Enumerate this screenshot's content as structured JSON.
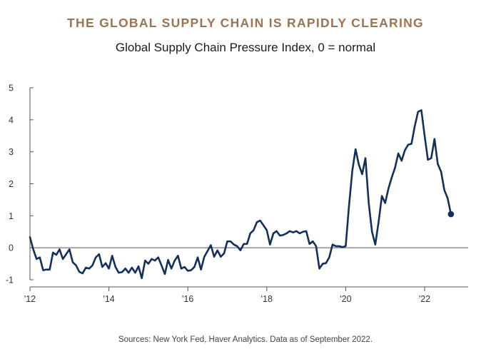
{
  "header": {
    "title": "THE GLOBAL SUPPLY CHAIN IS RAPIDLY CLEARING",
    "subtitle": "Global Supply Chain Pressure Index, 0 = normal"
  },
  "footer": {
    "source": "Sources: New York Fed, Haver Analytics. Data as of September 2022."
  },
  "colors": {
    "title": "#9a7453",
    "line": "#12305b",
    "axis": "#555555"
  },
  "chart_data": {
    "type": "line",
    "title": "Global Supply Chain Pressure Index, 0 = normal",
    "xlabel": "",
    "ylabel": "",
    "xlim": [
      2012.0,
      2022.85
    ],
    "ylim": [
      -1,
      5
    ],
    "yticks": [
      -1,
      0,
      1,
      2,
      3,
      4,
      5
    ],
    "ytick_labels": [
      "-1",
      "0",
      "1",
      "2",
      "3",
      "4",
      "5"
    ],
    "xticks": [
      2012,
      2014,
      2016,
      2018,
      2020,
      2022
    ],
    "xtick_labels": [
      "'12",
      "'14",
      "'16",
      "'18",
      "'20",
      "'22"
    ],
    "grid": false,
    "series": [
      {
        "name": "Global Supply Chain Pressure Index",
        "end_marker": true,
        "x": [
          2012.0,
          2012.083,
          2012.167,
          2012.25,
          2012.333,
          2012.417,
          2012.5,
          2012.583,
          2012.667,
          2012.75,
          2012.833,
          2012.917,
          2013.0,
          2013.083,
          2013.167,
          2013.25,
          2013.333,
          2013.417,
          2013.5,
          2013.583,
          2013.667,
          2013.75,
          2013.833,
          2013.917,
          2014.0,
          2014.083,
          2014.167,
          2014.25,
          2014.333,
          2014.417,
          2014.5,
          2014.583,
          2014.667,
          2014.75,
          2014.833,
          2014.917,
          2015.0,
          2015.083,
          2015.167,
          2015.25,
          2015.333,
          2015.417,
          2015.5,
          2015.583,
          2015.667,
          2015.75,
          2015.833,
          2015.917,
          2016.0,
          2016.083,
          2016.167,
          2016.25,
          2016.333,
          2016.417,
          2016.5,
          2016.583,
          2016.667,
          2016.75,
          2016.833,
          2016.917,
          2017.0,
          2017.083,
          2017.167,
          2017.25,
          2017.333,
          2017.417,
          2017.5,
          2017.583,
          2017.667,
          2017.75,
          2017.833,
          2017.917,
          2018.0,
          2018.083,
          2018.167,
          2018.25,
          2018.333,
          2018.417,
          2018.5,
          2018.583,
          2018.667,
          2018.75,
          2018.833,
          2018.917,
          2019.0,
          2019.083,
          2019.167,
          2019.25,
          2019.333,
          2019.417,
          2019.5,
          2019.583,
          2019.667,
          2019.75,
          2019.833,
          2019.917,
          2020.0,
          2020.083,
          2020.167,
          2020.25,
          2020.333,
          2020.417,
          2020.5,
          2020.583,
          2020.667,
          2020.75,
          2020.833,
          2020.917,
          2021.0,
          2021.083,
          2021.167,
          2021.25,
          2021.333,
          2021.417,
          2021.5,
          2021.583,
          2021.667,
          2021.75,
          2021.833,
          2021.917,
          2022.0,
          2022.083,
          2022.167,
          2022.25,
          2022.333,
          2022.417,
          2022.5,
          2022.583,
          2022.667
        ],
        "values": [
          0.33,
          -0.05,
          -0.35,
          -0.3,
          -0.7,
          -0.68,
          -0.68,
          -0.15,
          -0.22,
          -0.05,
          -0.35,
          -0.2,
          -0.05,
          -0.45,
          -0.55,
          -0.75,
          -0.8,
          -0.62,
          -0.65,
          -0.55,
          -0.3,
          -0.2,
          -0.6,
          -0.48,
          -0.65,
          -0.25,
          -0.6,
          -0.78,
          -0.76,
          -0.65,
          -0.78,
          -0.62,
          -0.78,
          -0.58,
          -0.95,
          -0.4,
          -0.5,
          -0.35,
          -0.4,
          -0.3,
          -0.55,
          -0.82,
          -0.38,
          -0.65,
          -0.4,
          -0.25,
          -0.65,
          -0.6,
          -0.72,
          -0.7,
          -0.6,
          -0.3,
          -0.68,
          -0.28,
          -0.1,
          0.08,
          -0.28,
          -0.08,
          -0.28,
          -0.18,
          0.2,
          0.2,
          0.1,
          0.05,
          -0.08,
          0.12,
          0.12,
          0.45,
          0.55,
          0.8,
          0.85,
          0.7,
          0.55,
          0.1,
          0.45,
          0.52,
          0.38,
          0.4,
          0.45,
          0.52,
          0.48,
          0.52,
          0.45,
          0.5,
          0.52,
          0.12,
          0.2,
          0.05,
          -0.65,
          -0.5,
          -0.48,
          -0.3,
          0.1,
          0.05,
          0.05,
          0.02,
          0.05,
          1.3,
          2.4,
          3.08,
          2.6,
          2.3,
          2.8,
          1.4,
          0.5,
          0.1,
          0.8,
          1.62,
          1.4,
          1.85,
          2.2,
          2.5,
          2.95,
          2.72,
          3.05,
          3.22,
          3.25,
          3.8,
          4.25,
          4.3,
          3.5,
          2.75,
          2.8,
          3.4,
          2.62,
          2.38,
          1.8,
          1.55,
          1.05
        ]
      }
    ]
  }
}
